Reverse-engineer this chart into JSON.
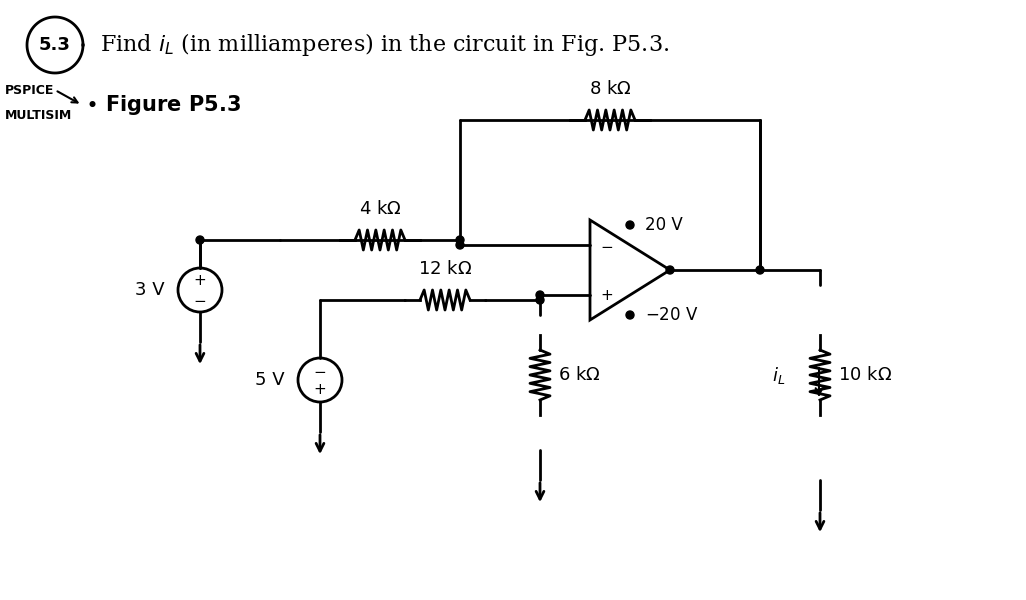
{
  "title": "Find $i_L$ (in milliamperes) in the circuit in Fig. P5.3.",
  "problem_number": "5.3",
  "figure_label": "Figure P5.3",
  "pspice_label": "PSPICE",
  "multisim_label": "MULTISIM",
  "bg_color": "#ffffff",
  "line_color": "#000000",
  "resistor_labels": [
    "4 kΩ",
    "12 kΩ",
    "8 kΩ",
    "6 kΩ",
    "10 kΩ"
  ],
  "source_labels": [
    "3 V",
    "5 V"
  ],
  "power_labels": [
    "20 V",
    "−20 V"
  ],
  "current_label": "i_L"
}
